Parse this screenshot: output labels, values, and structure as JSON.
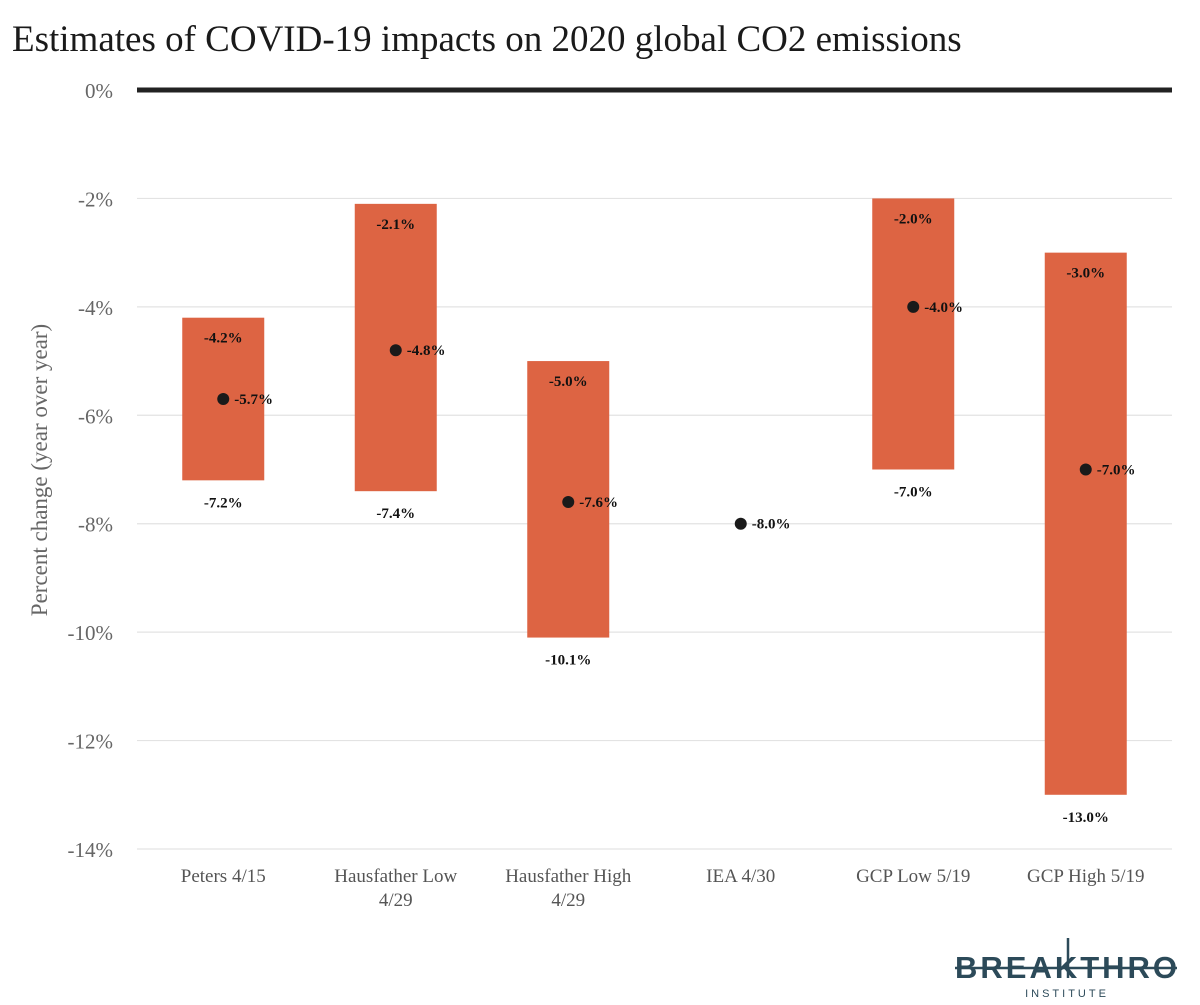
{
  "chart_data": {
    "type": "range-bar",
    "title": "Estimates of COVID-19 impacts on 2020 global CO2 emissions",
    "ylabel": "Percent change (year over year)",
    "xlabel": "",
    "ylim": [
      -14,
      0
    ],
    "yticks": [
      0,
      -2,
      -4,
      -6,
      -8,
      -10,
      -12,
      -14
    ],
    "ytick_labels": [
      "0%",
      "-2%",
      "-4%",
      "-6%",
      "-8%",
      "-10%",
      "-12%",
      "-14%"
    ],
    "grid": true,
    "categories": [
      [
        "Peters 4/15"
      ],
      [
        "Hausfather Low",
        "4/29"
      ],
      [
        "Hausfather High",
        "4/29"
      ],
      [
        "IEA 4/30"
      ],
      [
        "GCP Low 5/19"
      ],
      [
        "GCP High 5/19"
      ]
    ],
    "series": [
      {
        "high": -4.2,
        "low": -7.2,
        "central": -5.7,
        "high_label": "-4.2%",
        "low_label": "-7.2%",
        "central_label": "-5.7%"
      },
      {
        "high": -2.1,
        "low": -7.4,
        "central": -4.8,
        "high_label": "-2.1%",
        "low_label": "-7.4%",
        "central_label": "-4.8%"
      },
      {
        "high": -5.0,
        "low": -10.1,
        "central": -7.6,
        "high_label": "-5.0%",
        "low_label": "-10.1%",
        "central_label": "-7.6%"
      },
      {
        "high": null,
        "low": null,
        "central": -8.0,
        "high_label": "",
        "low_label": "",
        "central_label": "-8.0%"
      },
      {
        "high": -2.0,
        "low": -7.0,
        "central": -4.0,
        "high_label": "-2.0%",
        "low_label": "-7.0%",
        "central_label": "-4.0%"
      },
      {
        "high": -3.0,
        "low": -13.0,
        "central": -7.0,
        "high_label": "-3.0%",
        "low_label": "-13.0%",
        "central_label": "-7.0%"
      }
    ],
    "colors": {
      "bar": "#dd6443",
      "point": "#1a1a1a",
      "zero_line": "#222222",
      "grid": "#e3e3e3"
    }
  },
  "logo": {
    "name": "BREAKTHROUGH",
    "sub": "INSTITUTE",
    "color": "#2c4a59"
  }
}
